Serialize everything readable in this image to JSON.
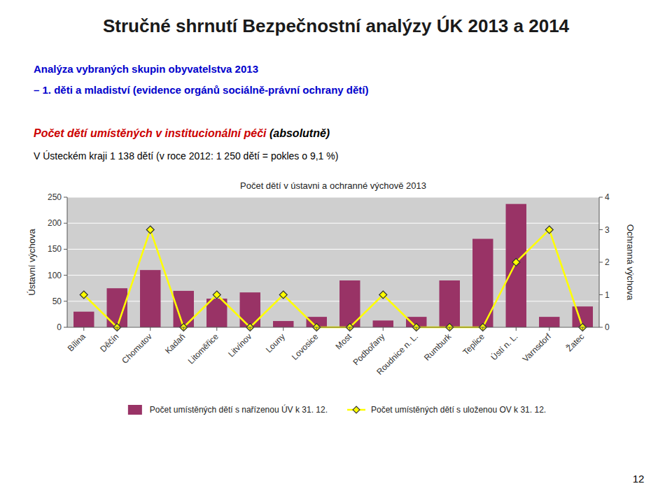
{
  "title": "Stručné shrnutí Bezpečnostní analýzy ÚK 2013 a 2014",
  "subtitles": [
    "Analýza vybraných skupin obyvatelstva 2013",
    "– 1. děti a mladiství (evidence orgánů sociálně-právní ochrany dětí)"
  ],
  "annotations": [
    "Počet dětí umístěných v institucionální péči ",
    "(absolutně)",
    "V Ústeckém kraji 1 138 dětí (v roce 2012: 1 250 dětí = pokles o 9,1 %)",
    "12"
  ],
  "chart_data": {
    "type": "bar",
    "title": "Počet dětí v ústavni a ochranné výchově 2013",
    "categories": [
      "Bílina",
      "Děčín",
      "Chomutov",
      "Kadaň",
      "Litoměřice",
      "Litvínov",
      "Louny",
      "Lovosice",
      "Most",
      "Podbořany",
      "Roudnice n. L.",
      "Rumburk",
      "Teplice",
      "Ústí n. L.",
      "Varnsdorf",
      "Žatec"
    ],
    "series": [
      {
        "name": "Počet umístěných dětí s nařízenou ÚV k 31. 12.",
        "type": "bar",
        "color": "#993366",
        "values": [
          30,
          75,
          110,
          70,
          55,
          67,
          12,
          20,
          90,
          13,
          20,
          90,
          170,
          237,
          20,
          40
        ]
      },
      {
        "name": "Počet umístěných dětí s uloženou OV k 31. 12.",
        "type": "line",
        "color": "#FFFF00",
        "marker": "diamond",
        "axis": "y2",
        "values": [
          1,
          0,
          3,
          0,
          1,
          0,
          1,
          0,
          0,
          1,
          0,
          0,
          0,
          2,
          3,
          0
        ]
      }
    ],
    "y_label": "Ústavní výchova",
    "y2_label": "Ochranná výchova",
    "ylim": [
      0,
      250
    ],
    "yticks": [
      0,
      50,
      100,
      150,
      200,
      250
    ],
    "y2lim": [
      0,
      4
    ],
    "y2ticks": [
      0,
      1,
      2,
      3,
      4
    ],
    "grid": true,
    "legend": "bottom"
  }
}
